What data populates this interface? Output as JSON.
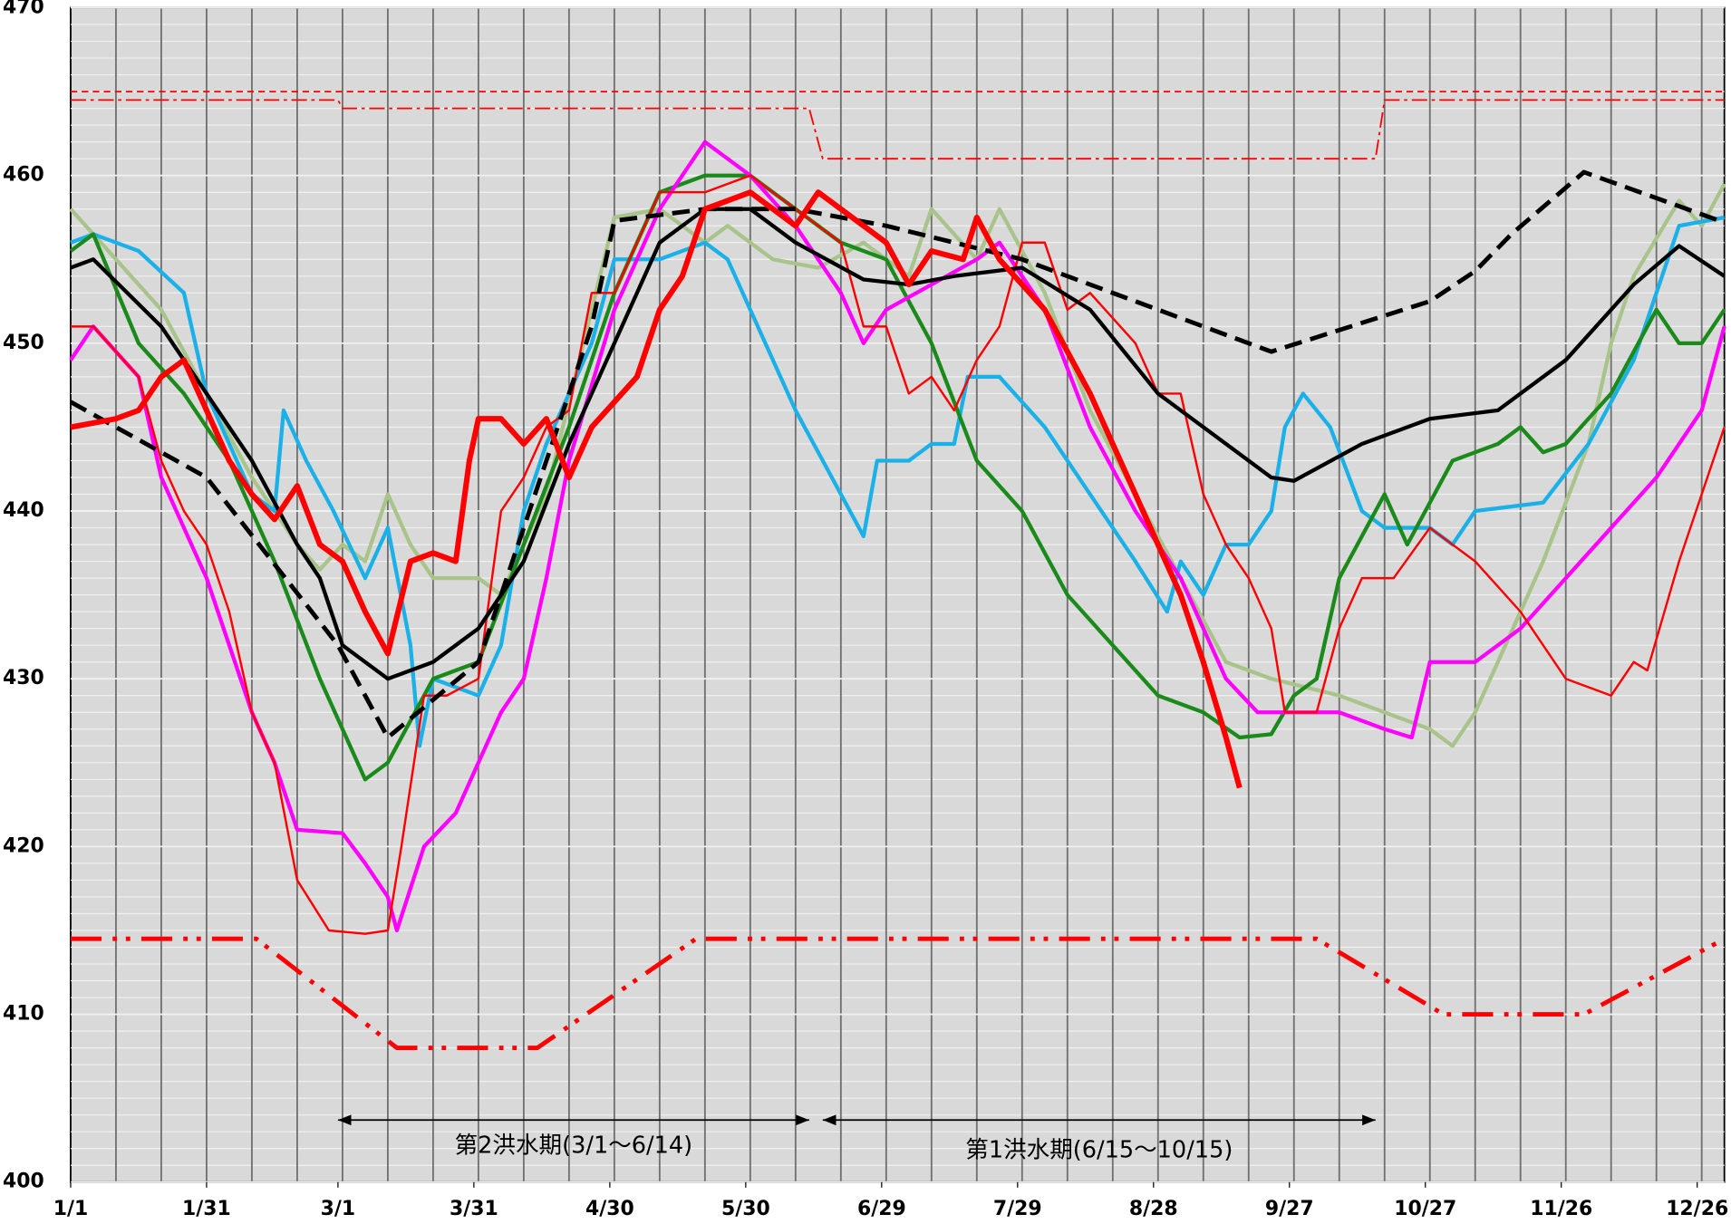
{
  "chart_data": {
    "type": "line",
    "xlim": [
      0,
      365
    ],
    "ylim": [
      400,
      470
    ],
    "xticks": [
      {
        "value": 0,
        "label": "1/1"
      },
      {
        "value": 30,
        "label": "1/31"
      },
      {
        "value": 59,
        "label": "3/1"
      },
      {
        "value": 89,
        "label": "3/31"
      },
      {
        "value": 119,
        "label": "4/30"
      },
      {
        "value": 149,
        "label": "5/30"
      },
      {
        "value": 179,
        "label": "6/29"
      },
      {
        "value": 209,
        "label": "7/29"
      },
      {
        "value": 239,
        "label": "8/28"
      },
      {
        "value": 269,
        "label": "9/27"
      },
      {
        "value": 299,
        "label": "10/27"
      },
      {
        "value": 329,
        "label": "11/26"
      },
      {
        "value": 359,
        "label": "12/26"
      }
    ],
    "yticks": [
      400,
      410,
      420,
      430,
      440,
      450,
      460,
      470
    ],
    "grid": {
      "x_step": 10,
      "y_step": 1
    },
    "series": [
      {
        "color": "#ff0000",
        "style": "dashed-thin",
        "x": [
          0,
          365
        ],
        "values": [
          465,
          465
        ]
      },
      {
        "color": "#ff0000",
        "style": "dashdot-thin",
        "x": [
          0,
          59,
          60,
          163,
          166,
          288,
          290,
          365
        ],
        "values": [
          464.5,
          464.5,
          464,
          464,
          461,
          461,
          464.5,
          464.5
        ]
      },
      {
        "color": "#ff0000",
        "style": "dashdotdot-thick",
        "x": [
          0,
          41,
          72,
          103,
          138,
          275,
          303,
          334,
          365
        ],
        "values": [
          414.5,
          414.5,
          408,
          408,
          414.5,
          414.5,
          410,
          410,
          414.5
        ]
      },
      {
        "color": "#a9c48a",
        "style": "solid-medium",
        "x": [
          0,
          10,
          20,
          30,
          40,
          50,
          55,
          60,
          65,
          70,
          75,
          80,
          90,
          95,
          105,
          115,
          120,
          130,
          140,
          145,
          155,
          165,
          175,
          185,
          190,
          200,
          205,
          215,
          225,
          235,
          245,
          255,
          265,
          280,
          290,
          300,
          305,
          310,
          315,
          325,
          335,
          340,
          345,
          355,
          360,
          365
        ],
        "values": [
          458,
          455,
          452,
          447,
          442,
          438,
          436.5,
          438,
          437,
          441,
          438,
          436,
          436,
          435,
          441,
          452,
          457.5,
          458,
          456,
          457,
          455,
          454.5,
          456,
          454,
          458,
          455,
          458,
          453,
          446,
          441,
          436,
          431,
          430,
          429,
          428,
          427,
          426,
          428,
          431,
          437,
          444,
          450,
          454,
          458.5,
          457,
          459.5
        ]
      },
      {
        "color": "#1ab0e8",
        "style": "solid-medium",
        "x": [
          0,
          5,
          15,
          25,
          30,
          40,
          45,
          47,
          52,
          58,
          65,
          70,
          75,
          77,
          80,
          90,
          95,
          100,
          105,
          115,
          120,
          130,
          140,
          145,
          150,
          160,
          170,
          175,
          178,
          185,
          190,
          195,
          198,
          205,
          215,
          225,
          235,
          242,
          245,
          250,
          255,
          260,
          265,
          268,
          272,
          278,
          285,
          290,
          300,
          305,
          310,
          325,
          335,
          345,
          355,
          365
        ],
        "values": [
          456,
          456.5,
          455.5,
          453,
          447,
          441,
          440,
          446,
          443,
          440,
          436,
          439,
          432,
          426,
          430,
          429,
          432,
          440,
          444,
          450,
          455,
          455,
          456,
          455,
          452,
          446,
          441,
          438.5,
          443,
          443,
          444,
          444,
          448,
          448,
          445,
          441,
          437,
          434,
          437,
          435,
          438,
          438,
          440,
          445,
          447,
          445,
          440,
          439,
          439,
          438,
          440,
          440.5,
          444,
          449,
          457,
          457.5
        ]
      },
      {
        "color": "#1a8a1a",
        "style": "solid-medium",
        "x": [
          0,
          5,
          15,
          25,
          35,
          45,
          55,
          65,
          70,
          80,
          90,
          100,
          110,
          120,
          130,
          140,
          150,
          160,
          170,
          180,
          190,
          200,
          210,
          220,
          230,
          240,
          250,
          258,
          265,
          270,
          275,
          280,
          290,
          295,
          305,
          315,
          320,
          325,
          330,
          340,
          350,
          355,
          360,
          365
        ],
        "values": [
          455.5,
          456.5,
          450,
          447,
          443,
          437,
          430,
          424,
          425,
          430,
          431,
          438,
          445,
          453,
          459,
          460,
          460,
          458,
          456,
          455,
          450,
          443,
          440,
          435,
          432,
          429,
          428,
          426.5,
          426.7,
          429,
          430,
          436,
          441,
          438,
          443,
          444,
          445,
          443.5,
          444,
          447,
          452,
          450,
          450,
          452
        ]
      },
      {
        "color": "#ff00ff",
        "style": "solid-medium",
        "x": [
          0,
          5,
          15,
          20,
          30,
          40,
          45,
          50,
          60,
          65,
          70,
          72,
          78,
          85,
          90,
          95,
          100,
          105,
          110,
          120,
          130,
          140,
          150,
          160,
          170,
          175,
          180,
          190,
          200,
          205,
          215,
          225,
          235,
          245,
          255,
          262,
          270,
          280,
          290,
          296,
          300,
          310,
          320,
          330,
          340,
          350,
          360,
          365
        ],
        "values": [
          449,
          451,
          448,
          442,
          436,
          428,
          425,
          421,
          420.8,
          419,
          417,
          415,
          420,
          422,
          425,
          428,
          430,
          436,
          443,
          452,
          458,
          462,
          460,
          457,
          453,
          450,
          452,
          453.5,
          455,
          456,
          452,
          445,
          440,
          436,
          430,
          428,
          428,
          428,
          427,
          426.5,
          431,
          431,
          433,
          436,
          439,
          442,
          446,
          451
        ]
      },
      {
        "color": "#ff0000",
        "style": "solid-thin",
        "x": [
          0,
          5,
          15,
          20,
          25,
          30,
          35,
          40,
          45,
          50,
          57,
          65,
          70,
          73,
          78,
          83,
          90,
          95,
          100,
          105,
          110,
          115,
          120,
          130,
          140,
          150,
          160,
          170,
          175,
          180,
          185,
          190,
          195,
          200,
          205,
          210,
          215,
          220,
          225,
          235,
          240,
          245,
          250,
          255,
          260,
          265,
          268,
          275,
          280,
          285,
          292,
          300,
          310,
          320,
          330,
          340,
          345,
          348,
          355,
          360,
          365
        ],
        "values": [
          451,
          451,
          448,
          443,
          440,
          438,
          434,
          428,
          425,
          418,
          415,
          414.8,
          415,
          420,
          429,
          429,
          430,
          440,
          442,
          445,
          446,
          453,
          453,
          459,
          459,
          460,
          458,
          456,
          451,
          451,
          447,
          448,
          446,
          449,
          451,
          456,
          456,
          452,
          453,
          450,
          447,
          447,
          441,
          438,
          436,
          433,
          428,
          428,
          433,
          436,
          436,
          439,
          437,
          434,
          430,
          429,
          431,
          430.5,
          437,
          441,
          445
        ]
      },
      {
        "color": "#000000",
        "style": "dashed-thick",
        "x": [
          0,
          30,
          59,
          70,
          90,
          115,
          120,
          140,
          160,
          180,
          210,
          240,
          265,
          300,
          310,
          318,
          334,
          365
        ],
        "values": [
          446.5,
          442,
          432,
          426.5,
          431,
          451,
          457.3,
          458,
          458,
          457,
          455,
          452,
          449.5,
          452.5,
          454.3,
          456.5,
          460.2,
          457.2
        ]
      },
      {
        "color": "#000000",
        "style": "solid-medium",
        "x": [
          0,
          5,
          20,
          40,
          50,
          55,
          60,
          70,
          80,
          90,
          100,
          110,
          120,
          130,
          140,
          150,
          160,
          175,
          185,
          195,
          210,
          225,
          240,
          250,
          265,
          270,
          285,
          300,
          315,
          330,
          345,
          355,
          365
        ],
        "values": [
          454.5,
          455,
          451,
          443,
          438,
          436,
          432,
          430,
          431,
          433,
          437,
          444,
          450,
          456,
          458,
          458,
          456,
          453.8,
          453.5,
          454,
          454.5,
          452,
          447,
          445,
          442,
          441.8,
          444,
          445.5,
          446,
          449,
          453.5,
          455.8,
          454
        ]
      },
      {
        "color": "#ff0000",
        "style": "solid-thick",
        "x": [
          0,
          10,
          15,
          20,
          25,
          30,
          35,
          40,
          45,
          50,
          55,
          60,
          65,
          70,
          75,
          80,
          85,
          88,
          90,
          95,
          100,
          105,
          110,
          115,
          120,
          125,
          130,
          135,
          140,
          150,
          160,
          165,
          175,
          180,
          185,
          190,
          197,
          200,
          205,
          215,
          225,
          235,
          245,
          250,
          255,
          258
        ],
        "values": [
          445,
          445.5,
          446,
          448,
          449,
          446,
          443,
          441,
          439.5,
          441.5,
          438,
          437,
          434,
          431.5,
          437,
          437.5,
          437,
          443,
          445.5,
          445.5,
          444,
          445.5,
          442,
          445,
          446.5,
          448,
          452,
          454,
          458,
          459,
          457,
          459,
          457,
          456,
          453.5,
          455.5,
          455,
          457.5,
          455,
          452,
          447,
          441,
          435,
          431,
          426.5,
          423.5
        ]
      }
    ],
    "annotations": [
      {
        "text": "第2洪水期(3/1～6/14)",
        "from": 59,
        "to": 163,
        "y": 403.7
      },
      {
        "text": "第1洪水期(6/15～10/15)",
        "from": 166,
        "to": 288,
        "y": 403.7
      }
    ]
  }
}
